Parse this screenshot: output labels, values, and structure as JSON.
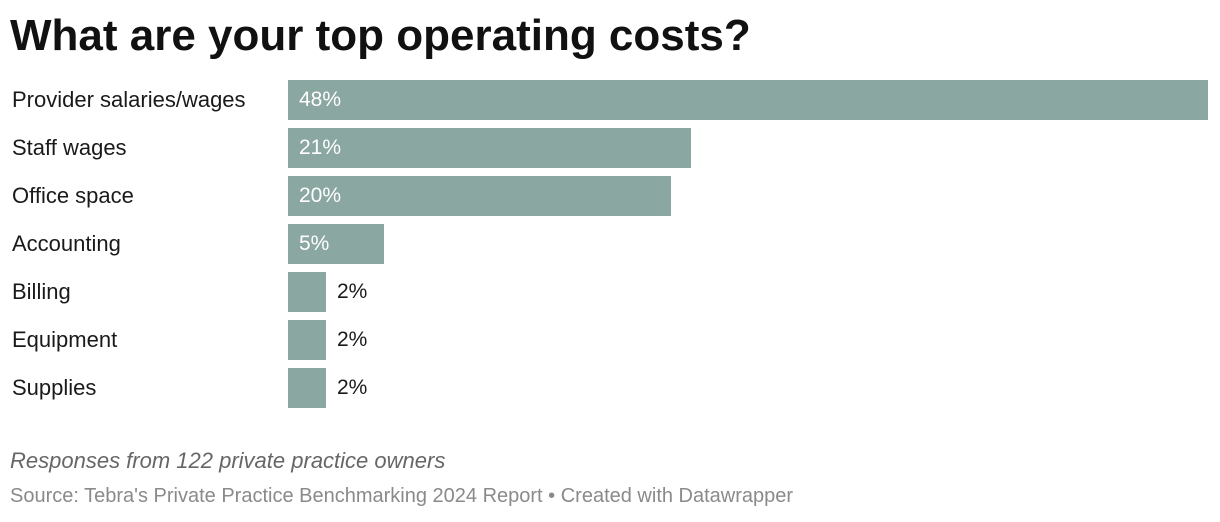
{
  "chart_data": {
    "type": "bar",
    "orientation": "horizontal",
    "title": "What are your top operating costs?",
    "categories": [
      "Provider salaries/wages",
      "Staff wages",
      "Office space",
      "Accounting",
      "Billing",
      "Equipment",
      "Supplies"
    ],
    "values": [
      48,
      21,
      20,
      5,
      2,
      2,
      2
    ],
    "value_labels": [
      "48%",
      "21%",
      "20%",
      "5%",
      "2%",
      "2%",
      "2%"
    ],
    "unit": "%",
    "xlim": [
      0,
      48
    ],
    "grid": false,
    "legend": "none",
    "bar_color": "#8ba7a1",
    "notes": "Responses from 122 private practice owners",
    "source": "Source: Tebra's Private Practice Benchmarking 2024 Report • Created with Datawrapper"
  }
}
